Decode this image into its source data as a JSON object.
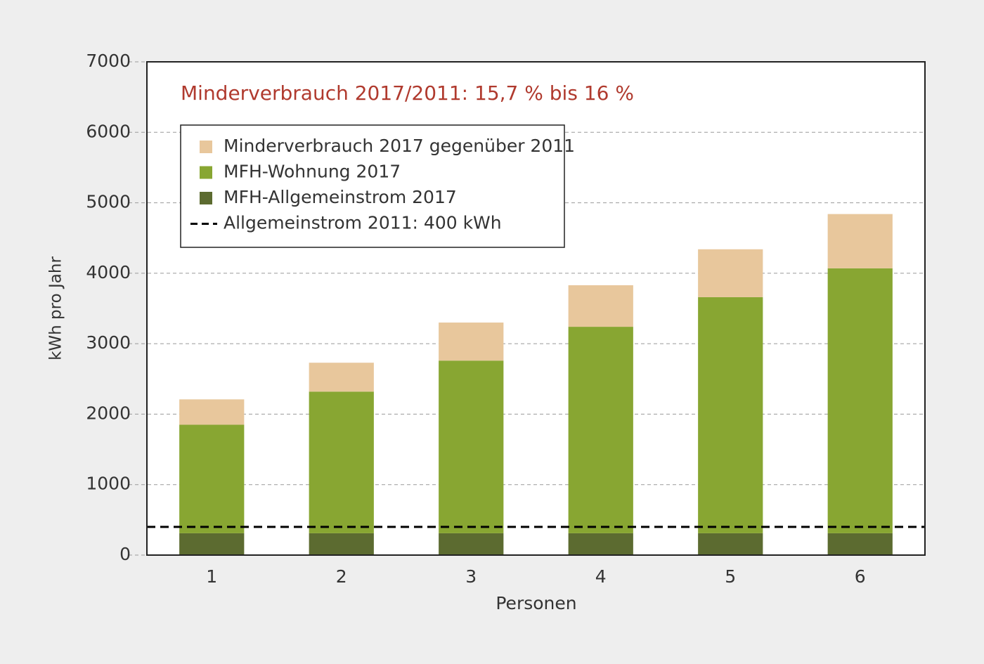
{
  "chart_data": {
    "type": "stacked_bar",
    "annotation": "Minderverbrauch 2017/2011: 15,7 % bis 16 %",
    "x_label": "Personen",
    "y_label": "kWh pro Jahr",
    "categories": [
      "1",
      "2",
      "3",
      "4",
      "5",
      "6"
    ],
    "series": [
      {
        "name": "Minderverbrauch 2017 gegenüber 2011",
        "color": "#e8c79c",
        "values": [
          360,
          410,
          540,
          590,
          680,
          770
        ]
      },
      {
        "name": "MFH-Wohnung 2017",
        "color": "#88a632",
        "values": [
          1540,
          2010,
          2450,
          2930,
          3350,
          3760
        ]
      },
      {
        "name": "MFH-Allgemeinstrom 2017",
        "color": "#5c6b30",
        "values": [
          310,
          310,
          310,
          310,
          310,
          310
        ]
      }
    ],
    "reference_line": {
      "name": "Allgemeinstrom 2011: 400 kWh",
      "value": 400,
      "color": "#000000"
    },
    "ylim": [
      0,
      7000
    ],
    "yticks": [
      0,
      1000,
      2000,
      3000,
      4000,
      5000,
      6000,
      7000
    ],
    "grid": true,
    "legend": "upper left"
  }
}
